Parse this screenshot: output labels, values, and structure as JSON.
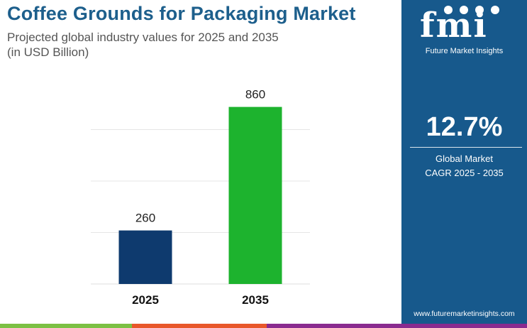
{
  "title": "Coffee Grounds for Packaging Market",
  "subtitle_line1": "Projected global industry values for 2025 and 2035",
  "subtitle_line2": "(in USD Billion)",
  "sidebar": {
    "logo_text": "fmi",
    "logo_subtitle": "Future Market Insights",
    "cagr_value": "12.7%",
    "cagr_label_line1": "Global Market",
    "cagr_label_line2": "CAGR 2025 - 2035",
    "website": "www.futuremarketinsights.com",
    "background_color": "#17598c"
  },
  "chart_data": {
    "type": "bar",
    "categories": [
      "2025",
      "2035"
    ],
    "values": [
      260,
      860
    ],
    "value_labels": [
      "260",
      "860"
    ],
    "colors": [
      "#0e3a6e",
      "#1db32e"
    ],
    "ylim": [
      0,
      1000
    ],
    "grid": true,
    "xlabel": "",
    "ylabel": ""
  },
  "bottom_bar_colors": [
    "#7bc043",
    "#e8572a",
    "#8a2b8f"
  ]
}
